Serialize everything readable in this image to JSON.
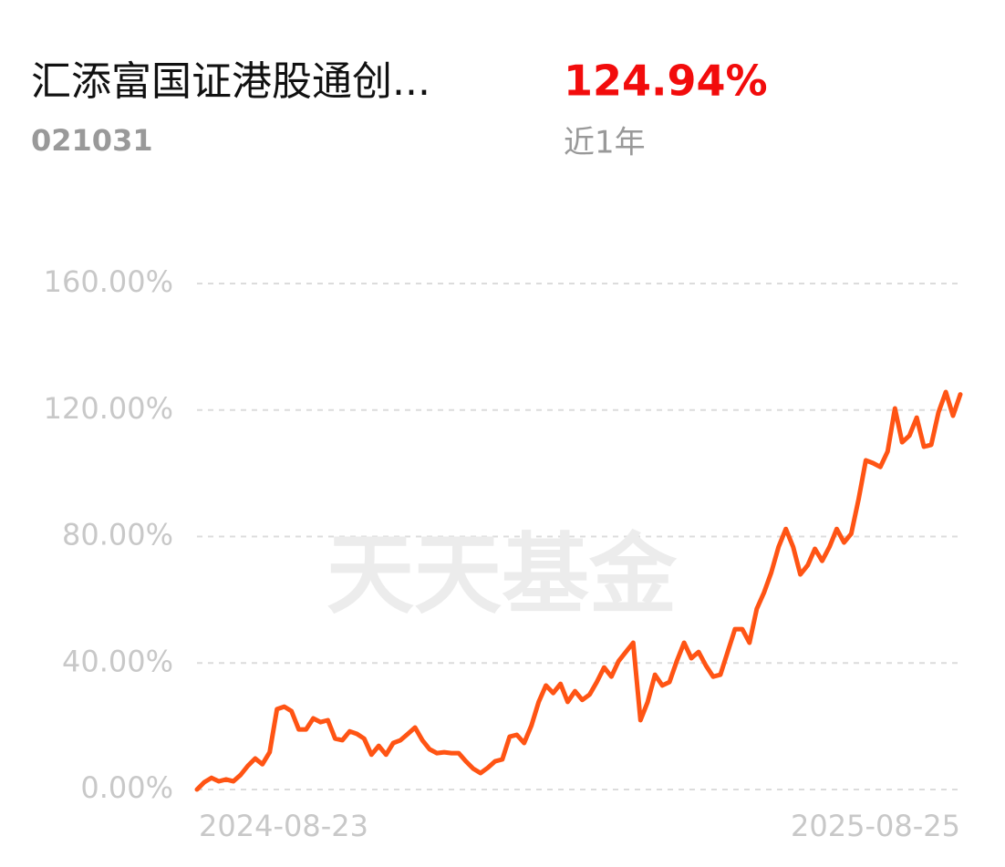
{
  "header": {
    "title": "汇添富国证港股通创...",
    "code": "021031",
    "return": "124.94%",
    "period": "近1年"
  },
  "watermark": "天天基金",
  "chart_data": {
    "type": "line",
    "color": "#ff5414",
    "grid": true,
    "ylim": [
      0,
      160
    ],
    "yticks": [
      {
        "value": 0,
        "label": "0.00%"
      },
      {
        "value": 40,
        "label": "40.00%"
      },
      {
        "value": 80,
        "label": "80.00%"
      },
      {
        "value": 120,
        "label": "120.00%"
      },
      {
        "value": 160,
        "label": "160.00%"
      }
    ],
    "categories": [
      "2024-08-23",
      null,
      null,
      null,
      null,
      null,
      null,
      null,
      null,
      null,
      null,
      null,
      null,
      null,
      null,
      null,
      null,
      null,
      null,
      null,
      null,
      null,
      null,
      null,
      null,
      null,
      null,
      null,
      null,
      null,
      null,
      null,
      null,
      null,
      null,
      null,
      null,
      null,
      null,
      null,
      null,
      null,
      null,
      null,
      null,
      null,
      null,
      null,
      null,
      null,
      null,
      null,
      null,
      null,
      null,
      null,
      null,
      null,
      null,
      null,
      null,
      null,
      null,
      null,
      null,
      null,
      null,
      null,
      null,
      null,
      null,
      null,
      null,
      null,
      null,
      null,
      null,
      null,
      null,
      null,
      null,
      null,
      null,
      null,
      null,
      null,
      null,
      null,
      null,
      null,
      null,
      null,
      null,
      null,
      null,
      null,
      null,
      null,
      null,
      null,
      null,
      null,
      null,
      null,
      null,
      "2025-08-25"
    ],
    "values": [
      0,
      2.3,
      3.7,
      2.6,
      3.2,
      2.6,
      4.6,
      7.5,
      9.8,
      8,
      11.8,
      25.4,
      26.2,
      24.8,
      19,
      19,
      22.5,
      21.3,
      21.9,
      16.1,
      15.6,
      18.4,
      17.6,
      16.1,
      11,
      13.8,
      11,
      14.7,
      15.6,
      17.6,
      19.6,
      15.6,
      12.7,
      11.5,
      11.8,
      11.5,
      11.5,
      8.9,
      6.6,
      5.2,
      6.9,
      8.9,
      9.5,
      16.7,
      17.3,
      14.7,
      20.2,
      27.7,
      32.9,
      30.5,
      33.4,
      27.7,
      31.1,
      28.3,
      30,
      34,
      38.6,
      35.7,
      40.6,
      43.5,
      46.4,
      21.9,
      27.7,
      36.3,
      32.9,
      34,
      40.6,
      46.4,
      41.5,
      43.5,
      39.2,
      35.7,
      36.3,
      43.5,
      50.7,
      50.7,
      46.4,
      57.1,
      62.3,
      68.6,
      76.7,
      82.4,
      76.7,
      68,
      70.9,
      76.1,
      72.3,
      76.7,
      82.4,
      78.1,
      80.9,
      91.7,
      104.1,
      103.2,
      102,
      106.9,
      120.5,
      109.8,
      111.9,
      117.6,
      108.4,
      109,
      119.3,
      125.7,
      118.2,
      124.94
    ]
  }
}
